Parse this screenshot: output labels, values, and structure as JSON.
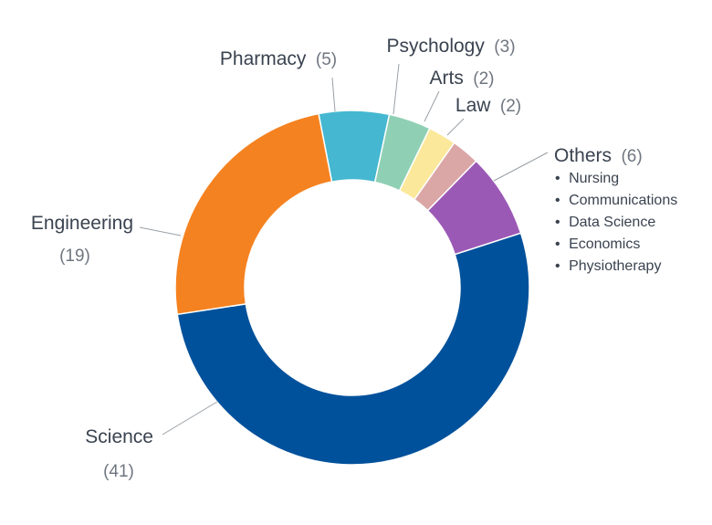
{
  "chart_data": {
    "type": "pie",
    "donut": true,
    "title": "",
    "slices": [
      {
        "label": "Science",
        "value": 41,
        "color": "#00519b"
      },
      {
        "label": "Engineering",
        "value": 19,
        "color": "#f58220"
      },
      {
        "label": "Pharmacy",
        "value": 5,
        "color": "#45b7d1"
      },
      {
        "label": "Psychology",
        "value": 3,
        "color": "#8fd0b4"
      },
      {
        "label": "Arts",
        "value": 2,
        "color": "#fbe89a"
      },
      {
        "label": "Law",
        "value": 2,
        "color": "#dba6a6"
      },
      {
        "label": "Others",
        "value": 6,
        "color": "#9b59b6",
        "breakdown": [
          "Nursing",
          "Communications",
          "Data Science",
          "Economics",
          "Physiotherapy"
        ]
      }
    ],
    "count_labels": [
      "(41)",
      "(19)",
      "(5)",
      "(3)",
      "(2)",
      "(2)",
      "(6)"
    ],
    "sub_bullet": "•",
    "legend": "none"
  }
}
